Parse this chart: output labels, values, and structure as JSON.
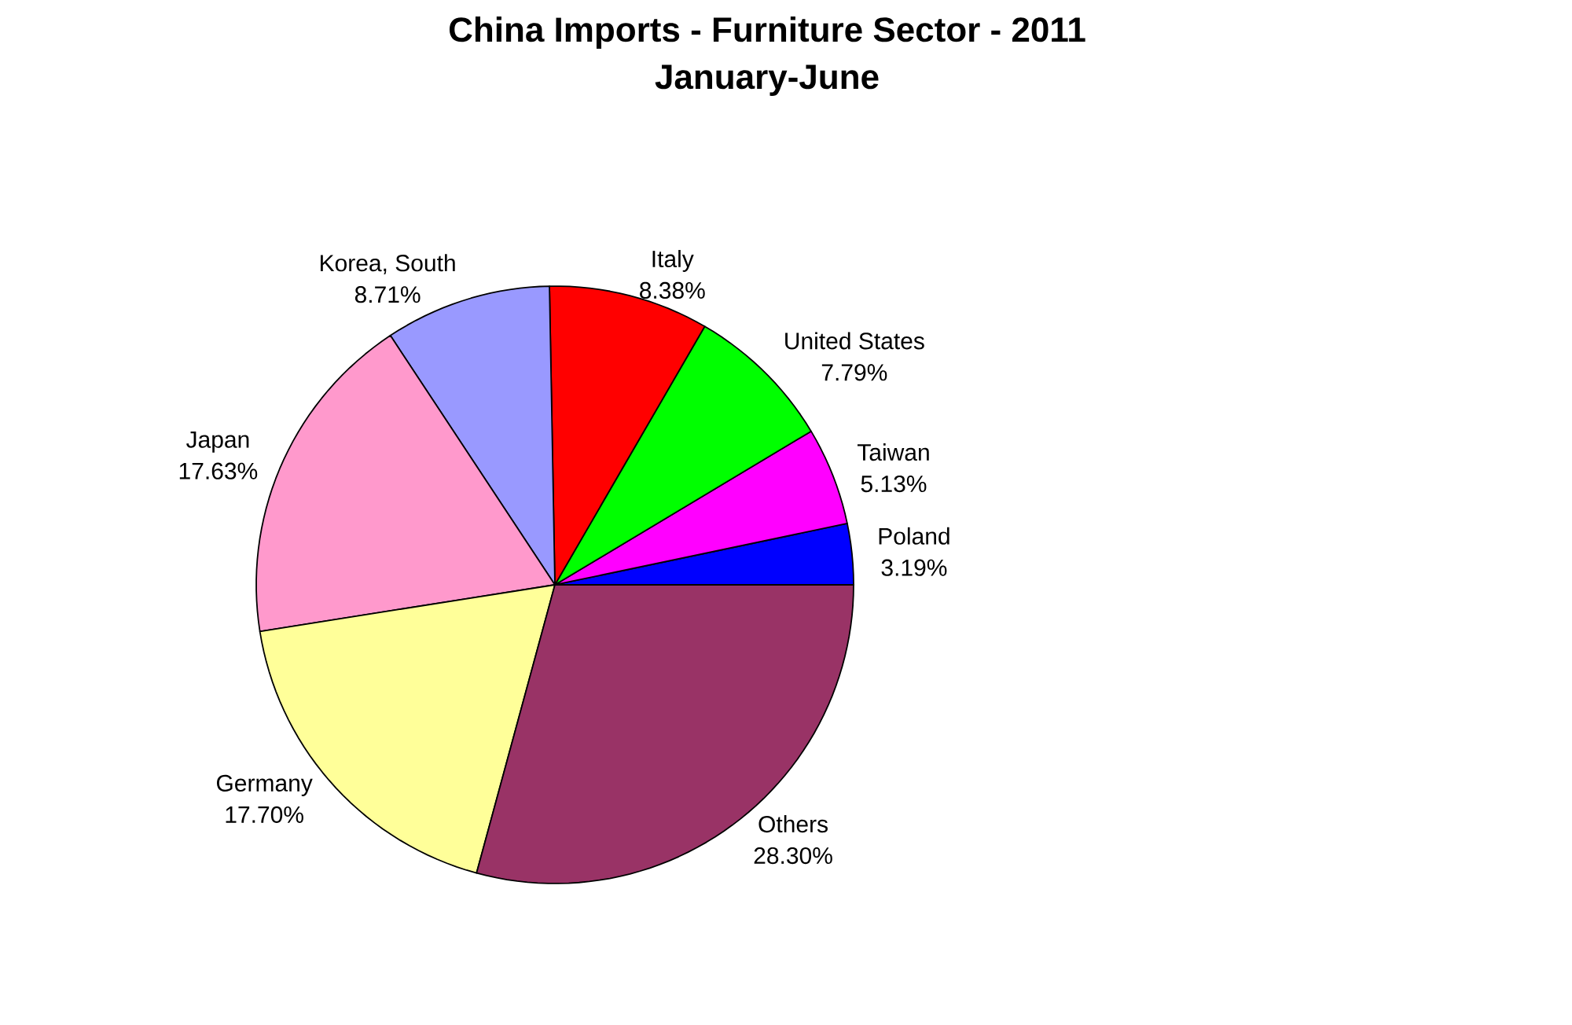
{
  "chart_data": {
    "type": "pie",
    "title": "China Imports - Furniture Sector - 2011",
    "subtitle": "January-June",
    "categories": [
      "Poland",
      "Taiwan",
      "United States",
      "Italy",
      "Korea, South",
      "Japan",
      "Germany",
      "Others"
    ],
    "values": [
      3.19,
      5.13,
      7.79,
      8.38,
      8.71,
      17.63,
      17.7,
      28.3
    ],
    "value_labels": [
      "3.19%",
      "5.13%",
      "7.79%",
      "8.38%",
      "8.71%",
      "17.63%",
      "17.70%",
      "28.30%"
    ],
    "colors": [
      "#0000ff",
      "#ff00ff",
      "#00ff00",
      "#ff0000",
      "#9999ff",
      "#ff99cc",
      "#ffff99",
      "#993366"
    ]
  }
}
